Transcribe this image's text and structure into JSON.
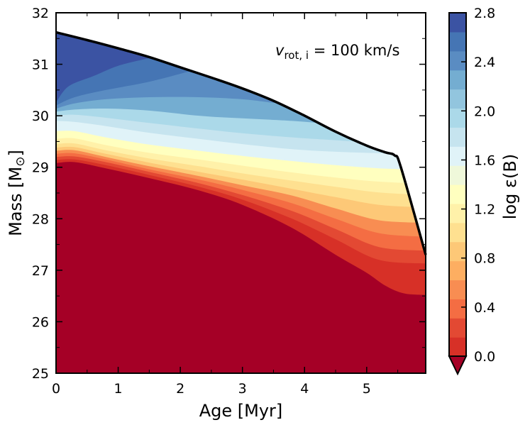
{
  "chart_data": {
    "type": "area",
    "xlabel": "Age [Myr]",
    "ylabel": "Mass [M",
    "ylabel_sub": "⊙",
    "ylabel_end": "]",
    "xlim": [
      0,
      5.95
    ],
    "ylim": [
      25,
      32
    ],
    "xticks": [
      "0",
      "1",
      "2",
      "3",
      "4",
      "5"
    ],
    "yticks": [
      "25",
      "26",
      "27",
      "28",
      "29",
      "30",
      "31",
      "32"
    ],
    "annotation": {
      "var": "v",
      "sub": "rot, i",
      "rest": " = 100 km/s"
    },
    "colorbar": {
      "label": "log ε(B)",
      "ticks": [
        "0.0",
        "0.4",
        "0.8",
        "1.2",
        "1.6",
        "2.0",
        "2.4",
        "2.8"
      ],
      "range": [
        0.0,
        2.8
      ],
      "extend": "min",
      "colors": [
        "#d73027",
        "#e34933",
        "#f46d43",
        "#f88d52",
        "#fdae61",
        "#fdc877",
        "#fee090",
        "#fff1a9",
        "#ffffbf",
        "#eff8da",
        "#e0f3f8",
        "#c6e4ef",
        "#abd9e9",
        "#92c5de",
        "#74add1",
        "#5a8cc2",
        "#4575b4",
        "#3b53a3"
      ],
      "under_color": "#a50026"
    },
    "upper_boundary": {
      "x": [
        0,
        0.5,
        1.0,
        1.5,
        2.0,
        2.5,
        3.0,
        3.5,
        4.0,
        4.5,
        5.0,
        5.3,
        5.45,
        5.55,
        5.95
      ],
      "mass": [
        31.62,
        31.47,
        31.31,
        31.14,
        30.94,
        30.74,
        30.53,
        30.29,
        30.0,
        29.69,
        29.42,
        29.29,
        29.23,
        29.0,
        27.3
      ]
    },
    "contour_levels": [
      {
        "level": 2.6,
        "x": [
          0,
          0.2,
          0.6,
          1.0,
          1.5
        ],
        "mass": [
          30.26,
          30.57,
          30.77,
          30.97,
          31.12
        ]
      },
      {
        "level": 2.4,
        "x": [
          0,
          0.3,
          0.8,
          1.5,
          2.2
        ],
        "mass": [
          30.2,
          30.36,
          30.5,
          30.66,
          30.88
        ]
      },
      {
        "level": 2.2,
        "x": [
          0,
          0.3,
          0.8,
          1.5,
          2.3,
          3.0,
          3.5
        ],
        "mass": [
          30.14,
          30.24,
          30.32,
          30.36,
          30.36,
          30.32,
          30.25
        ]
      },
      {
        "level": 2.0,
        "x": [
          0,
          0.3,
          0.8,
          1.5,
          2.3,
          3.0,
          3.8,
          4.3
        ],
        "mass": [
          30.08,
          30.12,
          30.14,
          30.1,
          30.0,
          29.95,
          29.9,
          29.85
        ]
      },
      {
        "level": 1.8,
        "x": [
          0,
          0.3,
          0.8,
          1.5,
          2.3,
          3.0,
          3.8,
          4.3,
          4.8
        ],
        "mass": [
          30.0,
          30.02,
          29.96,
          29.86,
          29.75,
          29.66,
          29.58,
          29.54,
          29.5
        ]
      },
      {
        "level": 1.6,
        "x": [
          0,
          0.3,
          0.8,
          1.5,
          2.3,
          3.0,
          3.8,
          4.5,
          5.5,
          5.95
        ],
        "mass": [
          29.9,
          29.88,
          29.8,
          29.67,
          29.55,
          29.45,
          29.35,
          29.3,
          29.26,
          29.23
        ]
      },
      {
        "level": 1.4,
        "x": [
          0,
          0.3,
          0.8,
          1.5,
          2.3,
          3.0,
          3.8,
          4.5,
          5.2,
          5.95
        ],
        "mass": [
          29.7,
          29.7,
          29.58,
          29.44,
          29.32,
          29.22,
          29.12,
          29.04,
          28.98,
          28.95
        ]
      },
      {
        "level": 1.2,
        "x": [
          0,
          0.3,
          0.8,
          1.5,
          2.3,
          3.0,
          3.8,
          4.5,
          5.2,
          5.95
        ],
        "mass": [
          29.55,
          29.56,
          29.43,
          29.28,
          29.15,
          29.03,
          28.9,
          28.8,
          28.72,
          28.68
        ]
      },
      {
        "level": 1.0,
        "x": [
          0,
          0.3,
          0.8,
          1.5,
          2.3,
          3.0,
          3.8,
          4.5,
          5.2,
          5.95
        ],
        "mass": [
          29.45,
          29.46,
          29.33,
          29.17,
          29.02,
          28.88,
          28.74,
          28.62,
          28.51,
          28.46
        ]
      },
      {
        "level": 0.8,
        "x": [
          0,
          0.3,
          0.8,
          1.5,
          2.3,
          3.0,
          3.8,
          4.5,
          5.2,
          5.95
        ],
        "mass": [
          29.38,
          29.39,
          29.26,
          29.09,
          28.91,
          28.76,
          28.58,
          28.42,
          28.27,
          28.22
        ]
      },
      {
        "level": 0.6,
        "x": [
          0,
          0.3,
          0.8,
          1.5,
          2.3,
          3.0,
          3.8,
          4.5,
          5.2,
          5.95
        ],
        "mass": [
          29.32,
          29.33,
          29.2,
          29.02,
          28.83,
          28.65,
          28.45,
          28.2,
          27.97,
          27.92
        ]
      },
      {
        "level": 0.4,
        "x": [
          0,
          0.3,
          0.8,
          1.5,
          2.3,
          3.0,
          3.8,
          4.5,
          5.2,
          5.95
        ],
        "mass": [
          29.26,
          29.27,
          29.15,
          28.96,
          28.76,
          28.56,
          28.3,
          28.0,
          27.72,
          27.65
        ]
      },
      {
        "level": 0.2,
        "x": [
          0,
          0.3,
          0.8,
          1.5,
          2.3,
          3.0,
          3.8,
          4.5,
          5.2,
          5.95
        ],
        "mass": [
          29.2,
          29.21,
          29.1,
          28.91,
          28.69,
          28.46,
          28.15,
          27.8,
          27.45,
          27.38
        ]
      },
      {
        "level": 0.1,
        "x": [
          0,
          0.3,
          0.8,
          1.5,
          2.3,
          3.0,
          3.8,
          4.5,
          5.2,
          5.95
        ],
        "mass": [
          29.14,
          29.15,
          29.04,
          28.85,
          28.62,
          28.37,
          28.0,
          27.6,
          27.2,
          27.13
        ]
      },
      {
        "level": 0.0,
        "x": [
          0,
          0.3,
          0.8,
          1.5,
          2.3,
          3.0,
          3.8,
          4.5,
          5.0,
          5.3,
          5.6,
          5.95
        ],
        "mass": [
          29.08,
          29.1,
          28.98,
          28.79,
          28.55,
          28.27,
          27.82,
          27.3,
          26.95,
          26.7,
          26.55,
          26.52
        ]
      }
    ]
  }
}
